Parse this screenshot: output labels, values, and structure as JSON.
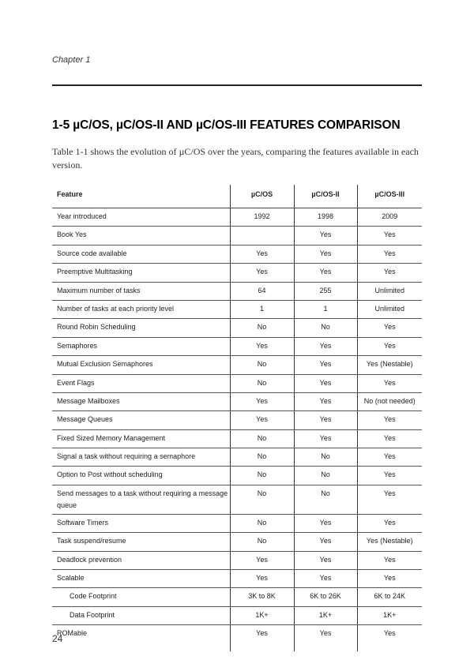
{
  "header": {
    "chapter": "Chapter 1"
  },
  "section": {
    "title": "1-5  µC/OS, µC/OS-II AND µC/OS-III FEATURES COMPARISON",
    "intro": "Table 1-1 shows the evolution of µC/OS over the years, comparing the features available in each version."
  },
  "table": {
    "columns": [
      "Feature",
      "µC/OS",
      "µC/OS-II",
      "µC/OS-III"
    ],
    "rows": [
      [
        "Year introduced",
        "1992",
        "1998",
        "2009"
      ],
      [
        "Book Yes",
        "",
        "Yes",
        "Yes"
      ],
      [
        "Source code available",
        "Yes",
        "Yes",
        "Yes"
      ],
      [
        "Preemptive Multitasking",
        "Yes",
        "Yes",
        "Yes"
      ],
      [
        "Maximum number of tasks",
        "64",
        "255",
        "Unlimited"
      ],
      [
        "Number of tasks at each priority level",
        "1",
        "1",
        "Unlimited"
      ],
      [
        "Round Robin Scheduling",
        "No",
        "No",
        "Yes"
      ],
      [
        "Semaphores",
        "Yes",
        "Yes",
        "Yes"
      ],
      [
        "Mutual Exclusion Semaphores",
        "No",
        "Yes",
        "Yes (Nestable)"
      ],
      [
        "Event Flags",
        "No",
        "Yes",
        "Yes"
      ],
      [
        "Message Mailboxes",
        "Yes",
        "Yes",
        "No (not needed)"
      ],
      [
        "Message Queues",
        "Yes",
        "Yes",
        "Yes"
      ],
      [
        "Fixed Sized Memory Management",
        "No",
        "Yes",
        "Yes"
      ],
      [
        "Signal a task without requiring a semaphore",
        "No",
        "No",
        "Yes"
      ],
      [
        "Option to Post without scheduling",
        "No",
        "No",
        "Yes"
      ],
      [
        "Send messages to a task without requiring a message queue",
        "No",
        "No",
        "Yes"
      ],
      [
        "Software Timers",
        "No",
        "Yes",
        "Yes"
      ],
      [
        "Task suspend/resume",
        "No",
        "Yes",
        "Yes (Nestable)"
      ],
      [
        "Deadlock prevention",
        "Yes",
        "Yes",
        "Yes"
      ],
      [
        "Scalable",
        "Yes",
        "Yes",
        "Yes"
      ],
      [
        "Code Footprint",
        "3K to 8K",
        "6K to 26K",
        "6K to 24K"
      ],
      [
        "Data Footprint",
        "1K+",
        "1K+",
        "1K+"
      ],
      [
        "ROMable",
        "Yes",
        "Yes",
        "Yes"
      ]
    ]
  },
  "footer": {
    "page_number": "24"
  }
}
